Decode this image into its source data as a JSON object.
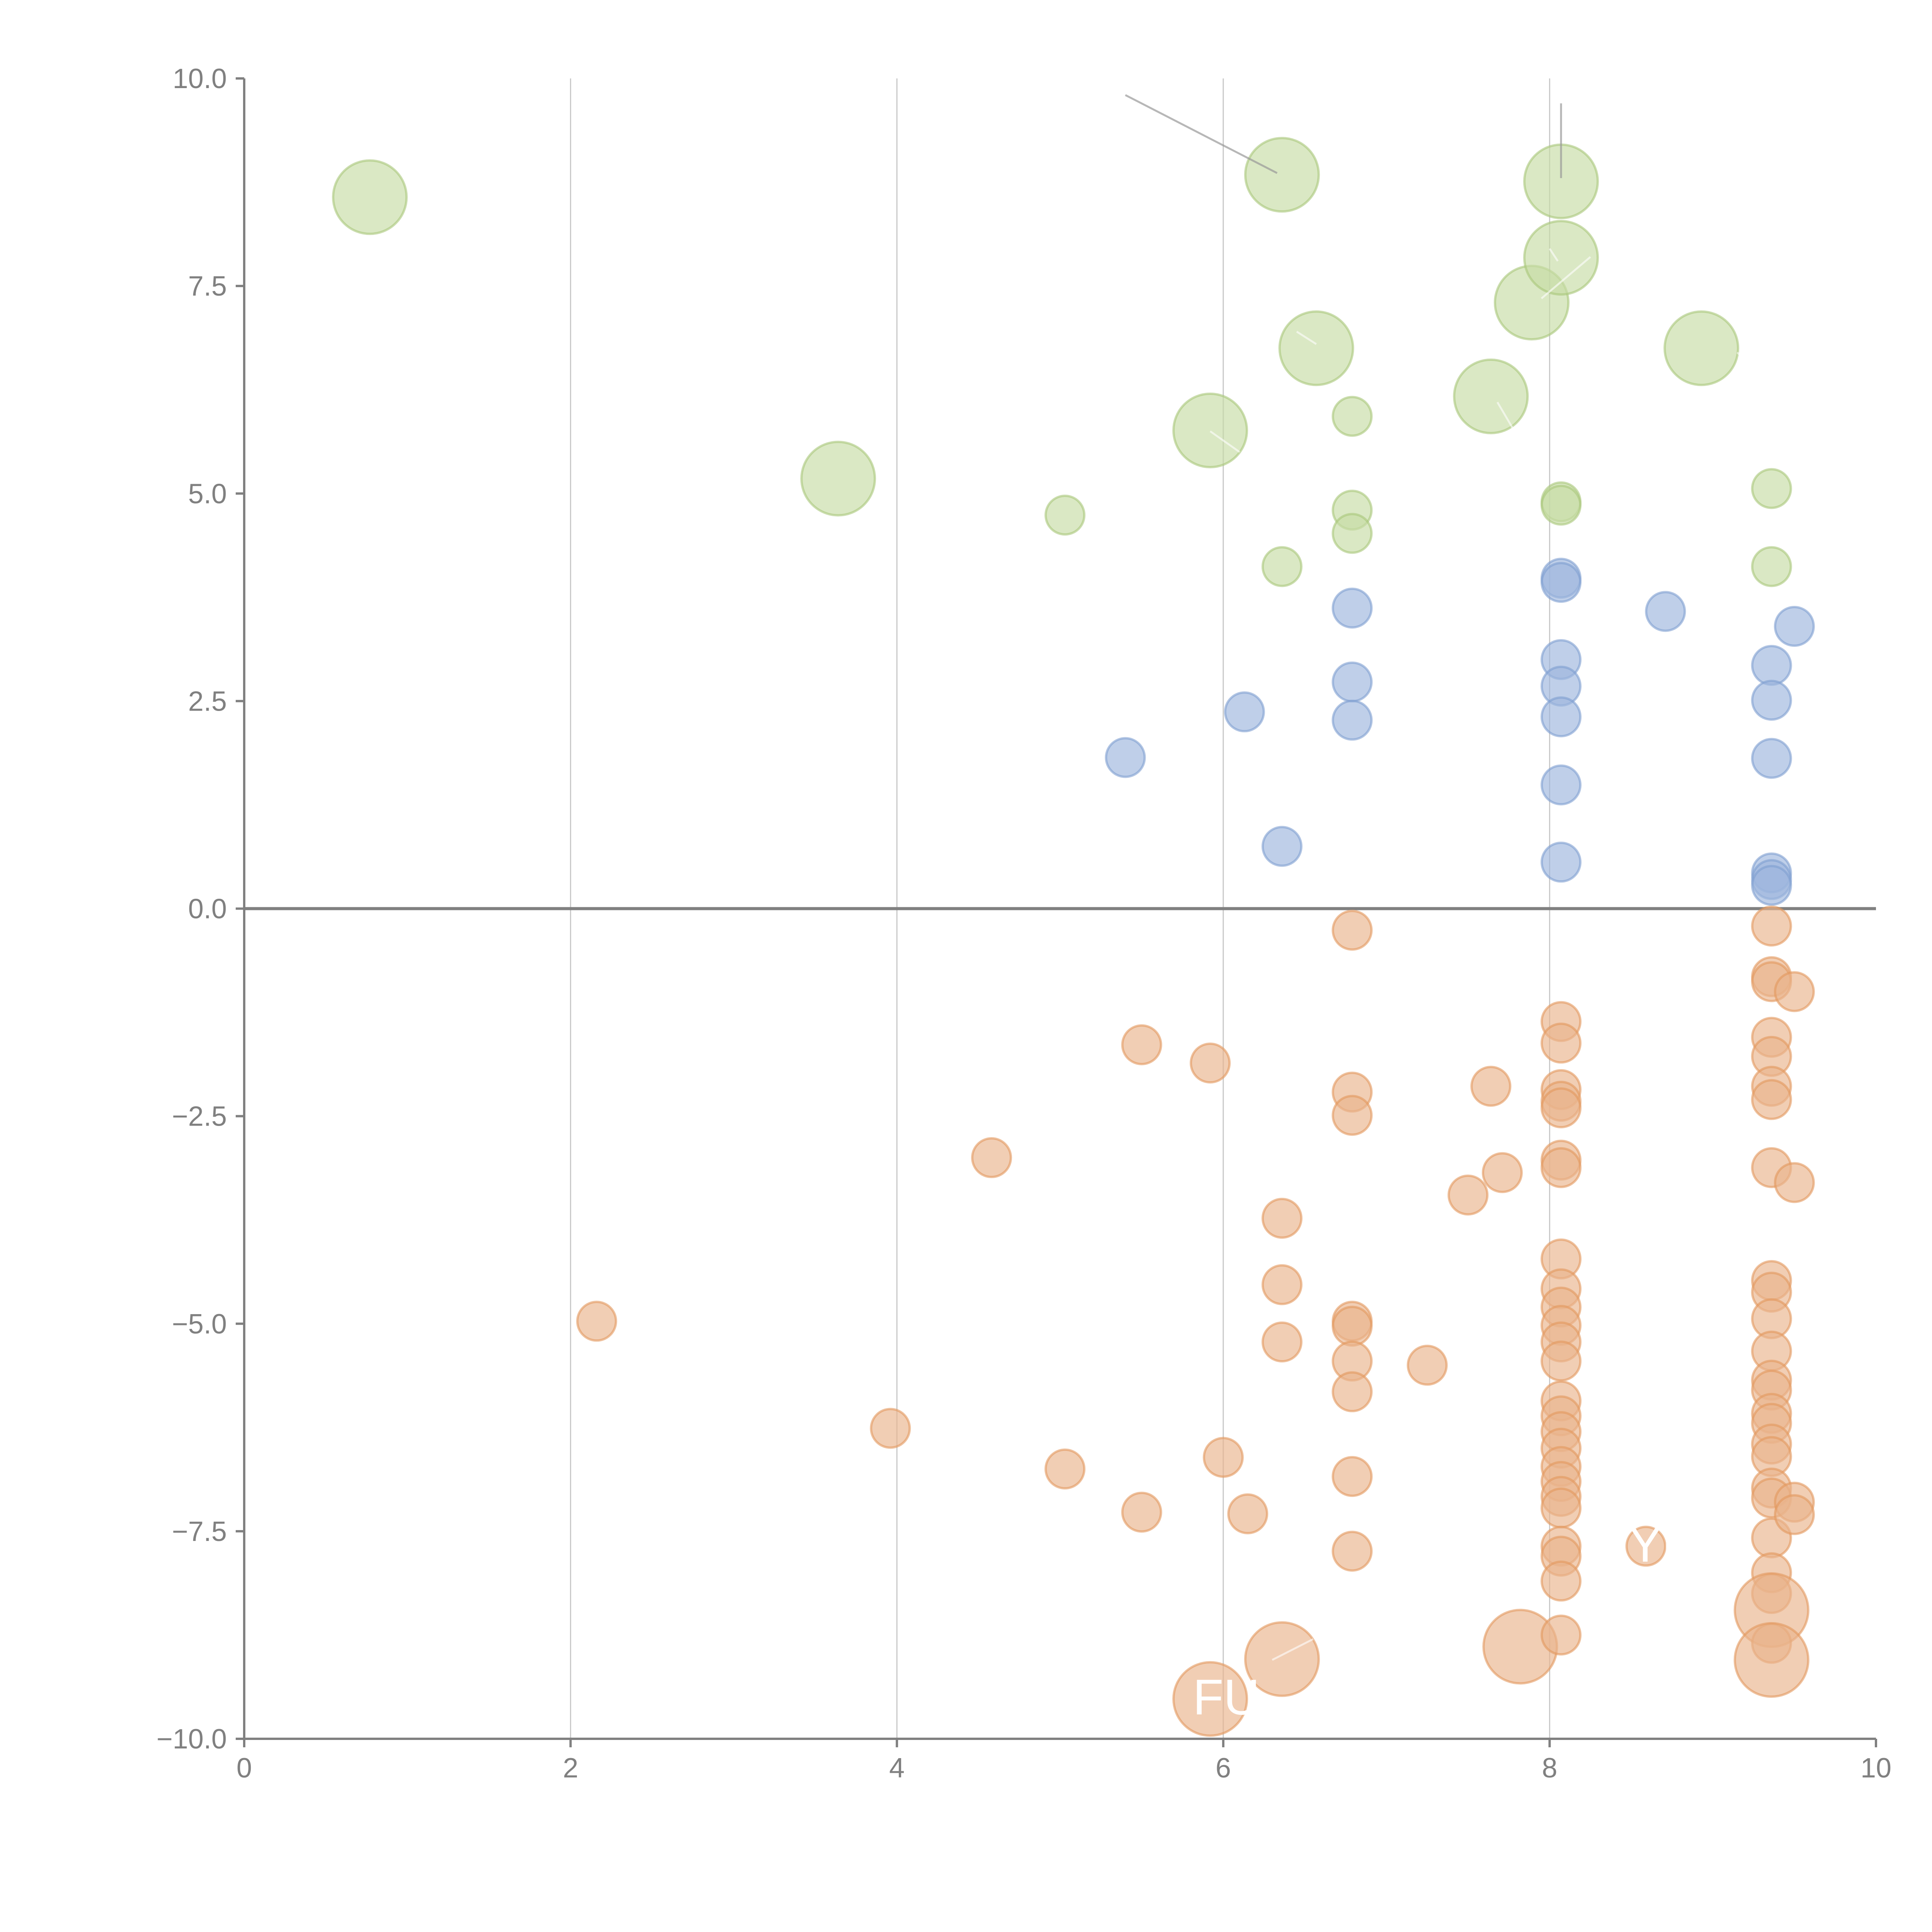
{
  "chart_data": {
    "type": "scatter",
    "title": "",
    "xlabel": "",
    "ylabel": "",
    "xlim": [
      0,
      10
    ],
    "ylim": [
      -10,
      10
    ],
    "grid": "vertical",
    "legend": "none",
    "x_ticks": [
      "0",
      "2",
      "4",
      "6",
      "8",
      "10"
    ],
    "y_ticks": [
      "−10.0",
      "−7.5",
      "−5.0",
      "−2.5",
      "0.0",
      "2.5",
      "5.0",
      "7.5",
      "10.0"
    ],
    "colors": {
      "green": "#c6dba5",
      "blue": "#9cb6dd",
      "orange": "#eab48c"
    },
    "series": [
      {
        "name": "green",
        "color": "green",
        "points": [
          [
            0.77,
            8.57,
            2
          ],
          [
            3.64,
            5.18,
            2
          ],
          [
            5.03,
            4.74,
            1
          ],
          [
            5.92,
            5.76,
            2
          ],
          [
            6.36,
            8.84,
            2
          ],
          [
            6.36,
            4.12,
            1
          ],
          [
            6.57,
            6.75,
            2
          ],
          [
            6.79,
            5.93,
            1
          ],
          [
            6.79,
            4.8,
            1
          ],
          [
            6.79,
            4.52,
            1
          ],
          [
            7.64,
            6.17,
            2
          ],
          [
            7.89,
            7.3,
            2
          ],
          [
            8.07,
            8.76,
            2
          ],
          [
            8.07,
            7.84,
            2
          ],
          [
            8.07,
            4.9,
            1
          ],
          [
            8.07,
            4.86,
            1
          ],
          [
            8.93,
            6.75,
            2
          ],
          [
            9.36,
            5.06,
            1
          ],
          [
            9.36,
            4.12,
            1
          ]
        ]
      },
      {
        "name": "blue",
        "color": "blue",
        "points": [
          [
            5.4,
            1.82,
            1
          ],
          [
            6.13,
            2.37,
            1
          ],
          [
            6.36,
            0.75,
            1
          ],
          [
            6.79,
            3.62,
            1
          ],
          [
            6.79,
            2.73,
            1
          ],
          [
            6.79,
            2.27,
            1
          ],
          [
            8.07,
            3.98,
            1
          ],
          [
            8.07,
            3.93,
            1
          ],
          [
            8.07,
            3.0,
            1
          ],
          [
            8.07,
            2.68,
            1
          ],
          [
            8.07,
            2.31,
            1
          ],
          [
            8.07,
            1.49,
            1
          ],
          [
            8.07,
            0.56,
            1
          ],
          [
            8.71,
            3.58,
            1
          ],
          [
            9.36,
            2.93,
            1
          ],
          [
            9.36,
            2.51,
            1
          ],
          [
            9.36,
            1.81,
            1
          ],
          [
            9.36,
            0.43,
            1
          ],
          [
            9.36,
            0.35,
            1
          ],
          [
            9.36,
            0.28,
            1
          ],
          [
            9.5,
            3.4,
            1
          ]
        ]
      },
      {
        "name": "orange",
        "color": "orange",
        "points": [
          [
            2.16,
            -4.97,
            1
          ],
          [
            3.96,
            -6.26,
            1
          ],
          [
            4.58,
            -3.0,
            1
          ],
          [
            5.03,
            -6.75,
            1
          ],
          [
            5.5,
            -1.64,
            1
          ],
          [
            5.5,
            -7.27,
            1
          ],
          [
            5.92,
            -1.86,
            1
          ],
          [
            5.92,
            -9.52,
            2
          ],
          [
            6.0,
            -6.61,
            1
          ],
          [
            6.15,
            -7.29,
            1
          ],
          [
            6.36,
            -3.73,
            1
          ],
          [
            6.36,
            -4.53,
            1
          ],
          [
            6.36,
            -5.22,
            1
          ],
          [
            6.36,
            -9.04,
            2
          ],
          [
            6.79,
            -0.26,
            1
          ],
          [
            6.79,
            -2.21,
            1
          ],
          [
            6.79,
            -2.49,
            1
          ],
          [
            6.79,
            -4.97,
            1
          ],
          [
            6.79,
            -5.03,
            1
          ],
          [
            6.79,
            -5.45,
            1
          ],
          [
            6.79,
            -5.82,
            1
          ],
          [
            6.79,
            -6.84,
            1
          ],
          [
            6.79,
            -7.74,
            1
          ],
          [
            7.25,
            -5.5,
            1
          ],
          [
            7.5,
            -3.45,
            1
          ],
          [
            7.64,
            -2.14,
            1
          ],
          [
            7.71,
            -3.18,
            1
          ],
          [
            7.82,
            -8.89,
            2
          ],
          [
            8.07,
            -1.36,
            1
          ],
          [
            8.07,
            -1.62,
            1
          ],
          [
            8.07,
            -2.18,
            1
          ],
          [
            8.07,
            -2.32,
            1
          ],
          [
            8.07,
            -2.4,
            1
          ],
          [
            8.07,
            -3.03,
            1
          ],
          [
            8.07,
            -3.12,
            1
          ],
          [
            8.07,
            -4.22,
            1
          ],
          [
            8.07,
            -4.58,
            1
          ],
          [
            8.07,
            -4.8,
            1
          ],
          [
            8.07,
            -5.02,
            1
          ],
          [
            8.07,
            -5.22,
            1
          ],
          [
            8.07,
            -5.45,
            1
          ],
          [
            8.07,
            -5.93,
            1
          ],
          [
            8.07,
            -6.11,
            1
          ],
          [
            8.07,
            -6.3,
            1
          ],
          [
            8.07,
            -6.5,
            1
          ],
          [
            8.07,
            -6.72,
            1
          ],
          [
            8.07,
            -6.9,
            1
          ],
          [
            8.07,
            -7.08,
            1
          ],
          [
            8.07,
            -7.22,
            1
          ],
          [
            8.07,
            -7.68,
            1
          ],
          [
            8.07,
            -7.8,
            1
          ],
          [
            8.07,
            -8.1,
            1
          ],
          [
            8.07,
            -8.75,
            1
          ],
          [
            8.59,
            -7.68,
            1
          ],
          [
            9.36,
            -0.21,
            1
          ],
          [
            9.36,
            -0.82,
            1
          ],
          [
            9.36,
            -0.88,
            1
          ],
          [
            9.36,
            -1.55,
            1
          ],
          [
            9.36,
            -1.78,
            1
          ],
          [
            9.36,
            -2.14,
            1
          ],
          [
            9.36,
            -2.3,
            1
          ],
          [
            9.36,
            -3.12,
            1
          ],
          [
            9.36,
            -4.48,
            1
          ],
          [
            9.36,
            -4.62,
            1
          ],
          [
            9.36,
            -4.94,
            1
          ],
          [
            9.36,
            -5.33,
            1
          ],
          [
            9.36,
            -5.68,
            1
          ],
          [
            9.36,
            -5.8,
            1
          ],
          [
            9.36,
            -6.08,
            1
          ],
          [
            9.36,
            -6.2,
            1
          ],
          [
            9.36,
            -6.45,
            1
          ],
          [
            9.36,
            -6.6,
            1
          ],
          [
            9.36,
            -6.98,
            1
          ],
          [
            9.36,
            -7.1,
            1
          ],
          [
            9.36,
            -7.58,
            1
          ],
          [
            9.36,
            -8.0,
            1
          ],
          [
            9.36,
            -8.25,
            1
          ],
          [
            9.36,
            -8.45,
            2
          ],
          [
            9.36,
            -8.85,
            1
          ],
          [
            9.36,
            -9.05,
            2
          ],
          [
            9.5,
            -1.0,
            1
          ],
          [
            9.5,
            -3.3,
            1
          ],
          [
            9.5,
            -7.15,
            1
          ],
          [
            9.5,
            -7.3,
            1
          ]
        ]
      }
    ],
    "size_scale": {
      "1": "small",
      "2": "large"
    },
    "annotations": [
      {
        "text": "FU",
        "x": 5.92,
        "y": -9.52
      },
      {
        "text": "YN",
        "x": 8.59,
        "y": -7.68
      }
    ]
  }
}
